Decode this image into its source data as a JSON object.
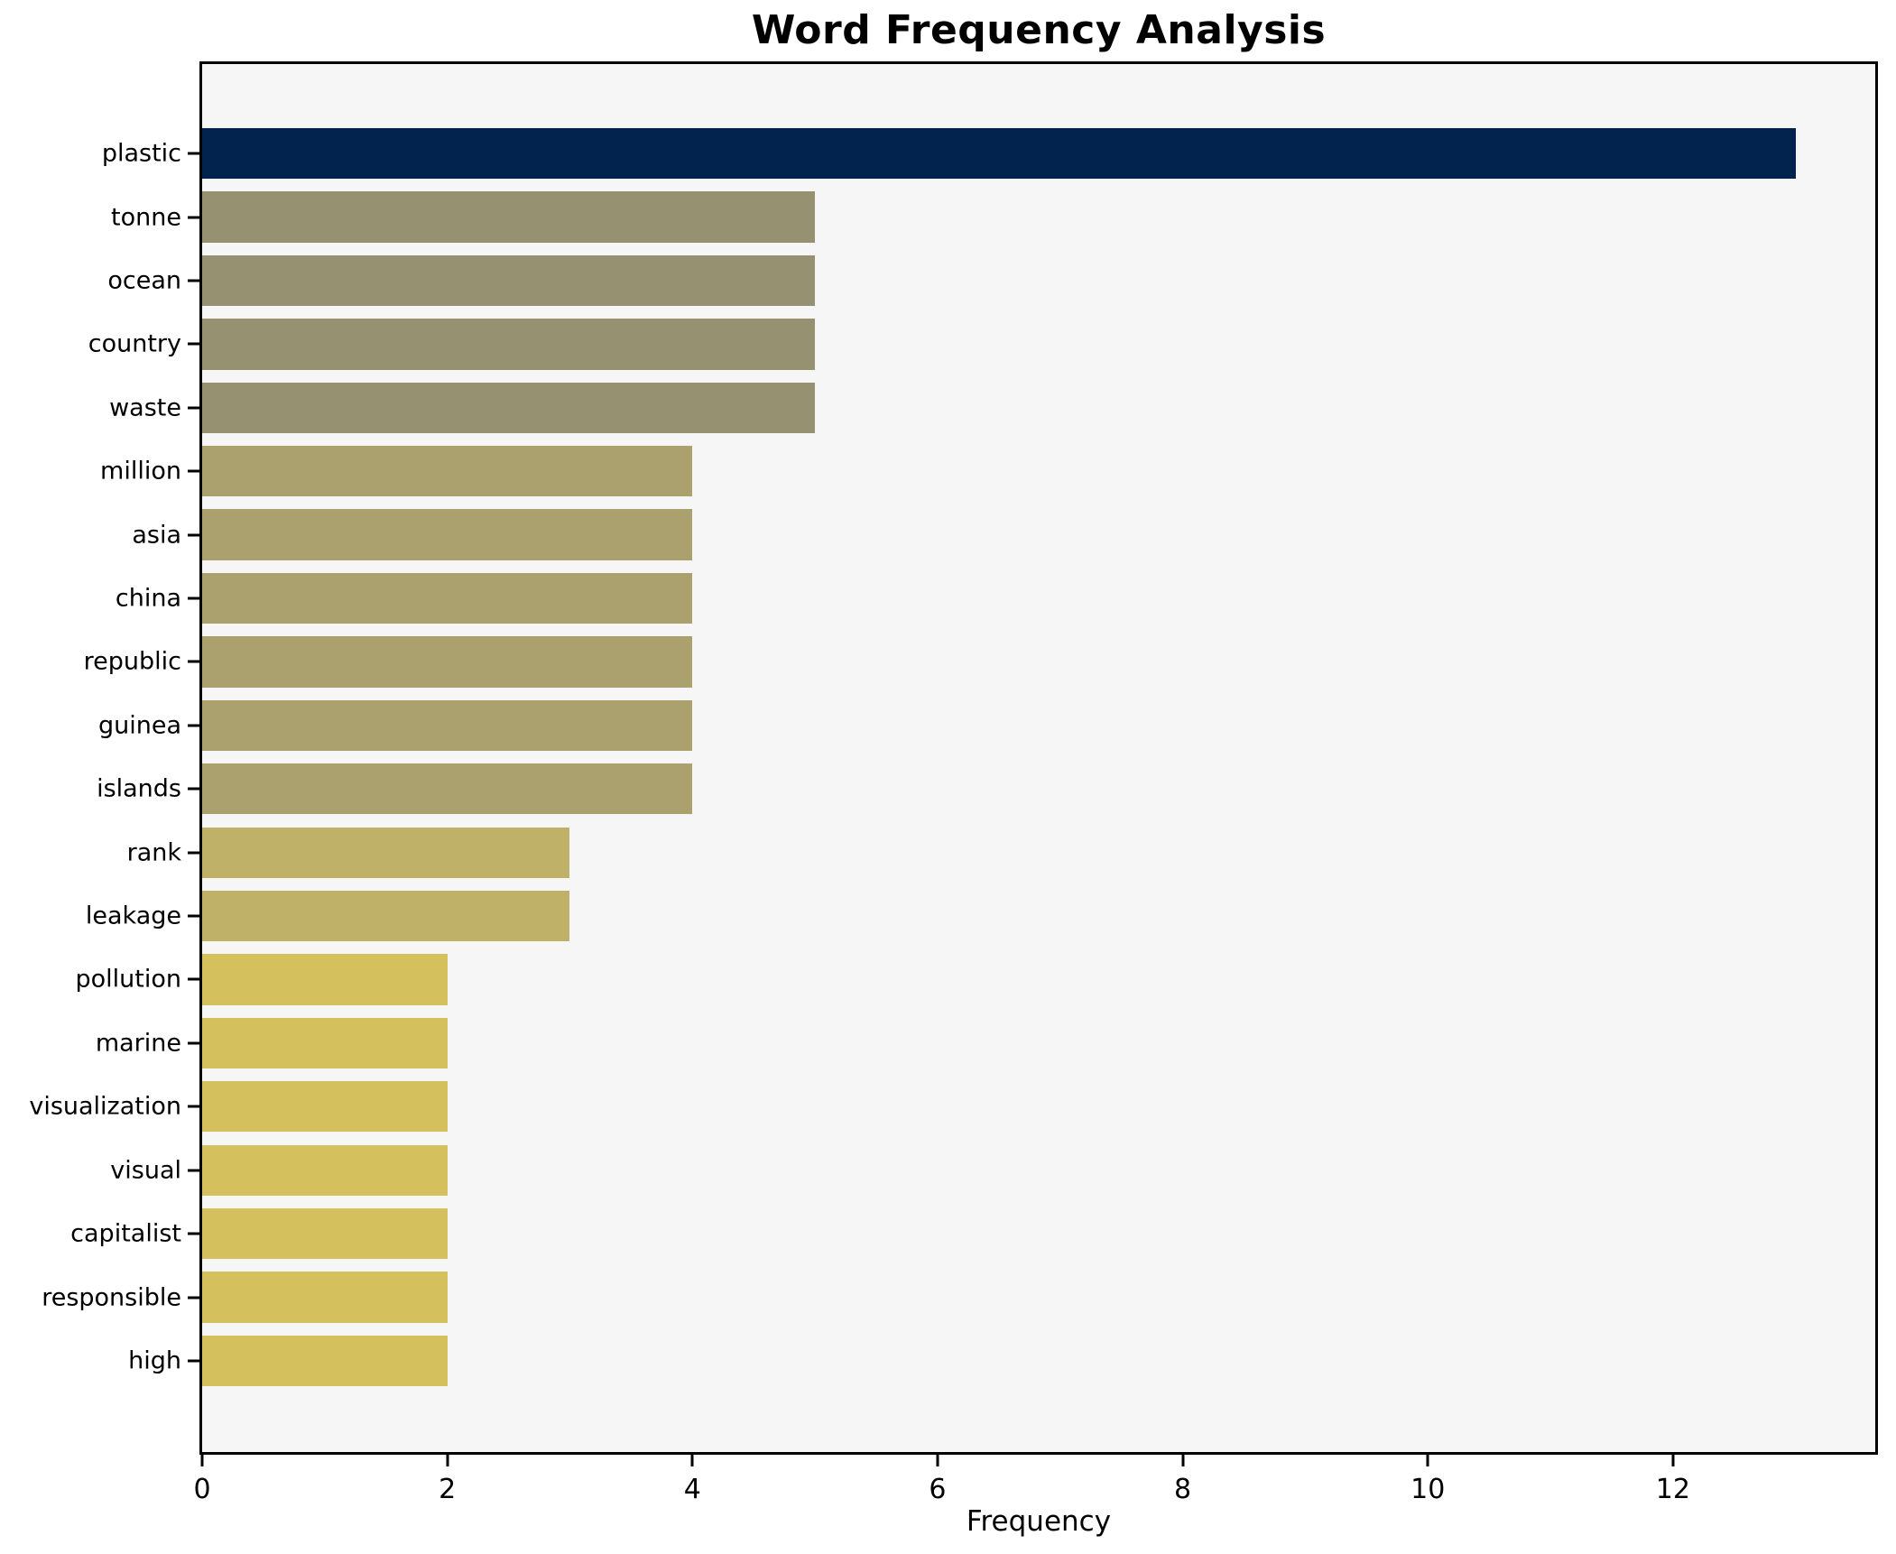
{
  "chart_data": {
    "type": "bar",
    "orientation": "horizontal",
    "title": "Word Frequency Analysis",
    "xlabel": "Frequency",
    "ylabel": "",
    "categories": [
      "plastic",
      "tonne",
      "ocean",
      "country",
      "waste",
      "million",
      "asia",
      "china",
      "republic",
      "guinea",
      "islands",
      "rank",
      "leakage",
      "pollution",
      "marine",
      "visualization",
      "visual",
      "capitalist",
      "responsible",
      "high"
    ],
    "values": [
      13,
      5,
      5,
      5,
      5,
      4,
      4,
      4,
      4,
      4,
      4,
      3,
      3,
      2,
      2,
      2,
      2,
      2,
      2,
      2
    ],
    "bar_colors": [
      "#02234d",
      "#969170",
      "#969170",
      "#969170",
      "#969170",
      "#aba16e",
      "#aba16e",
      "#aba16e",
      "#aba16e",
      "#aba16e",
      "#aba16e",
      "#c0b169",
      "#c0b169",
      "#d5c05e",
      "#d5c05e",
      "#d5c05e",
      "#d5c05e",
      "#d5c05e",
      "#d5c05e",
      "#d5c05e"
    ],
    "xlim": [
      0,
      13.65
    ],
    "xticks": [
      0,
      2,
      4,
      6,
      8,
      10,
      12
    ],
    "grid": false,
    "legend": null,
    "plot_background": "#f6f6f6",
    "figure_background": "#ffffff",
    "spine_color": "#000000"
  }
}
